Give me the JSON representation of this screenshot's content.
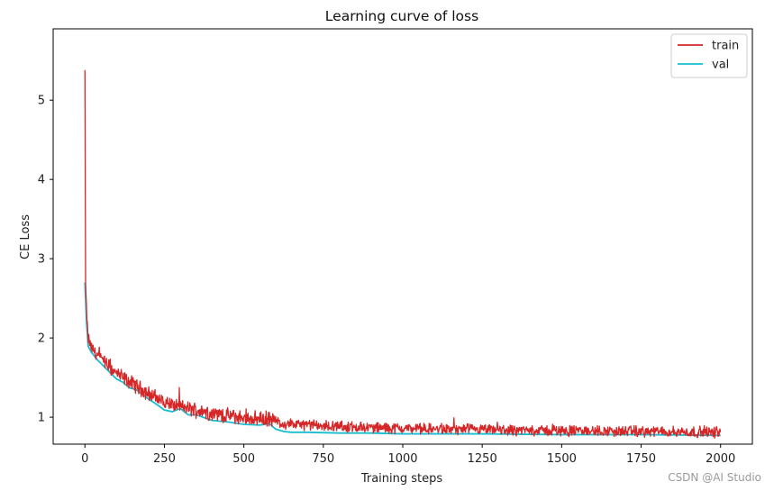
{
  "chart_data": {
    "type": "line",
    "title": "Learning curve of loss",
    "xlabel": "Training steps",
    "ylabel": "CE Loss",
    "xlim": [
      -100,
      2100
    ],
    "ylim": [
      0.66,
      5.9
    ],
    "xticks": [
      0,
      250,
      500,
      750,
      1000,
      1250,
      1500,
      1750,
      2000
    ],
    "yticks": [
      1,
      2,
      3,
      4,
      5
    ],
    "grid": false,
    "legend": "top-right",
    "series": [
      {
        "name": "train",
        "color": "#d62728",
        "noise": 0.045,
        "points": [
          [
            0,
            5.38
          ],
          [
            2,
            2.7
          ],
          [
            5,
            2.3
          ],
          [
            10,
            2.0
          ],
          [
            20,
            1.88
          ],
          [
            40,
            1.78
          ],
          [
            60,
            1.7
          ],
          [
            80,
            1.62
          ],
          [
            100,
            1.55
          ],
          [
            130,
            1.47
          ],
          [
            160,
            1.4
          ],
          [
            200,
            1.3
          ],
          [
            250,
            1.19
          ],
          [
            300,
            1.13
          ],
          [
            350,
            1.09
          ],
          [
            400,
            1.05
          ],
          [
            450,
            1.02
          ],
          [
            500,
            0.99
          ],
          [
            550,
            0.98
          ],
          [
            580,
            0.98
          ],
          [
            620,
            0.92
          ],
          [
            700,
            0.9
          ],
          [
            800,
            0.88
          ],
          [
            900,
            0.87
          ],
          [
            1000,
            0.86
          ],
          [
            1100,
            0.85
          ],
          [
            1250,
            0.84
          ],
          [
            1500,
            0.83
          ],
          [
            1750,
            0.82
          ],
          [
            2000,
            0.81
          ]
        ]
      },
      {
        "name": "val",
        "color": "#17becf",
        "points": [
          [
            0,
            2.7
          ],
          [
            5,
            2.2
          ],
          [
            10,
            1.9
          ],
          [
            20,
            1.82
          ],
          [
            40,
            1.72
          ],
          [
            60,
            1.64
          ],
          [
            80,
            1.56
          ],
          [
            100,
            1.48
          ],
          [
            120,
            1.44
          ],
          [
            140,
            1.37
          ],
          [
            160,
            1.35
          ],
          [
            200,
            1.23
          ],
          [
            230,
            1.15
          ],
          [
            250,
            1.09
          ],
          [
            275,
            1.07
          ],
          [
            300,
            1.11
          ],
          [
            325,
            1.03
          ],
          [
            350,
            1.03
          ],
          [
            400,
            0.96
          ],
          [
            450,
            0.94
          ],
          [
            500,
            0.91
          ],
          [
            550,
            0.9
          ],
          [
            580,
            0.92
          ],
          [
            600,
            0.85
          ],
          [
            625,
            0.82
          ],
          [
            650,
            0.81
          ],
          [
            700,
            0.81
          ],
          [
            800,
            0.8
          ],
          [
            900,
            0.8
          ],
          [
            1000,
            0.79
          ],
          [
            1250,
            0.79
          ],
          [
            1500,
            0.78
          ],
          [
            1750,
            0.78
          ],
          [
            2000,
            0.77
          ]
        ]
      }
    ]
  },
  "watermark": "CSDN @AI Studio"
}
